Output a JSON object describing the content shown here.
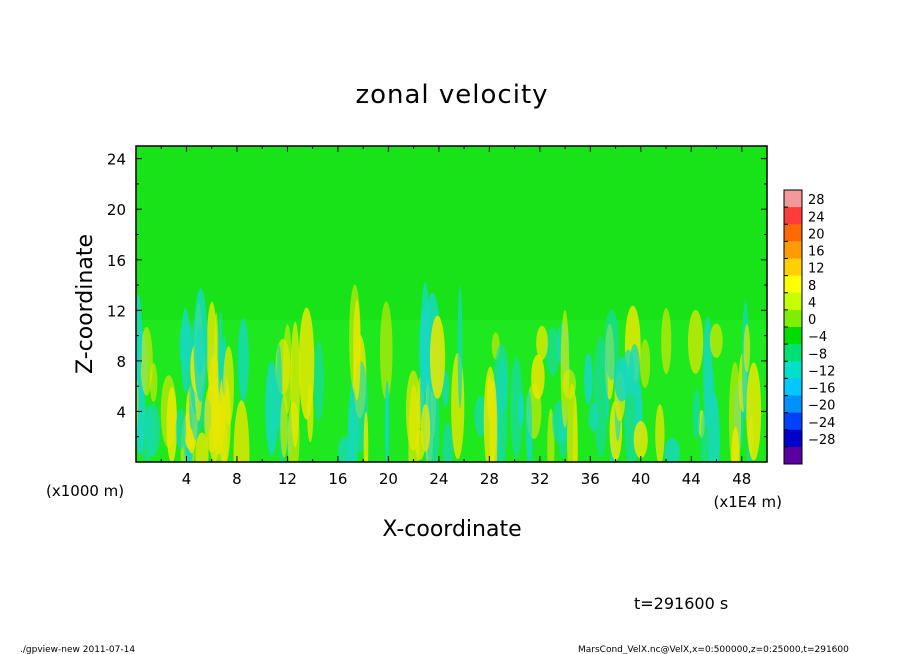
{
  "chart_data": {
    "type": "heatmap",
    "title": "zonal velocity",
    "xlabel": "X-coordinate",
    "ylabel": "Z-coordinate",
    "x_unit_label": "(x1E4 m)",
    "y_unit_label": "(x1000 m)",
    "x_ticks": [
      "4",
      "8",
      "12",
      "16",
      "20",
      "24",
      "28",
      "32",
      "36",
      "40",
      "44",
      "48"
    ],
    "y_ticks": [
      "4",
      "8",
      "12",
      "16",
      "20",
      "24"
    ],
    "xlim": [
      0,
      50
    ],
    "ylim": [
      0,
      25
    ],
    "colorbar": {
      "labels": [
        "28",
        "24",
        "20",
        "16",
        "12",
        "8",
        "4",
        "0",
        "−4",
        "−8",
        "−12",
        "−16",
        "−20",
        "−24",
        "−28"
      ],
      "colors": [
        "#f29a9a",
        "#ff3b3b",
        "#ff6a00",
        "#ff9a00",
        "#ffd000",
        "#ffff00",
        "#c8ff00",
        "#7cf000",
        "#00dd00",
        "#00e070",
        "#00e0c8",
        "#00c8ff",
        "#0090ff",
        "#0040ff",
        "#0000c8",
        "#5a00a0"
      ]
    },
    "field_description_colors": {
      "background": "#1ee81e",
      "upper_layer": "#14e014",
      "positive_streak": "#e8e800",
      "negative_streak": "#16d9c0"
    },
    "time_label": "t=291600 s",
    "footer_left": "./gpview-new   2011-07-14",
    "footer_right": "MarsCond_VelX.nc@VelX,x=0:500000,z=0:25000,t=291600"
  }
}
